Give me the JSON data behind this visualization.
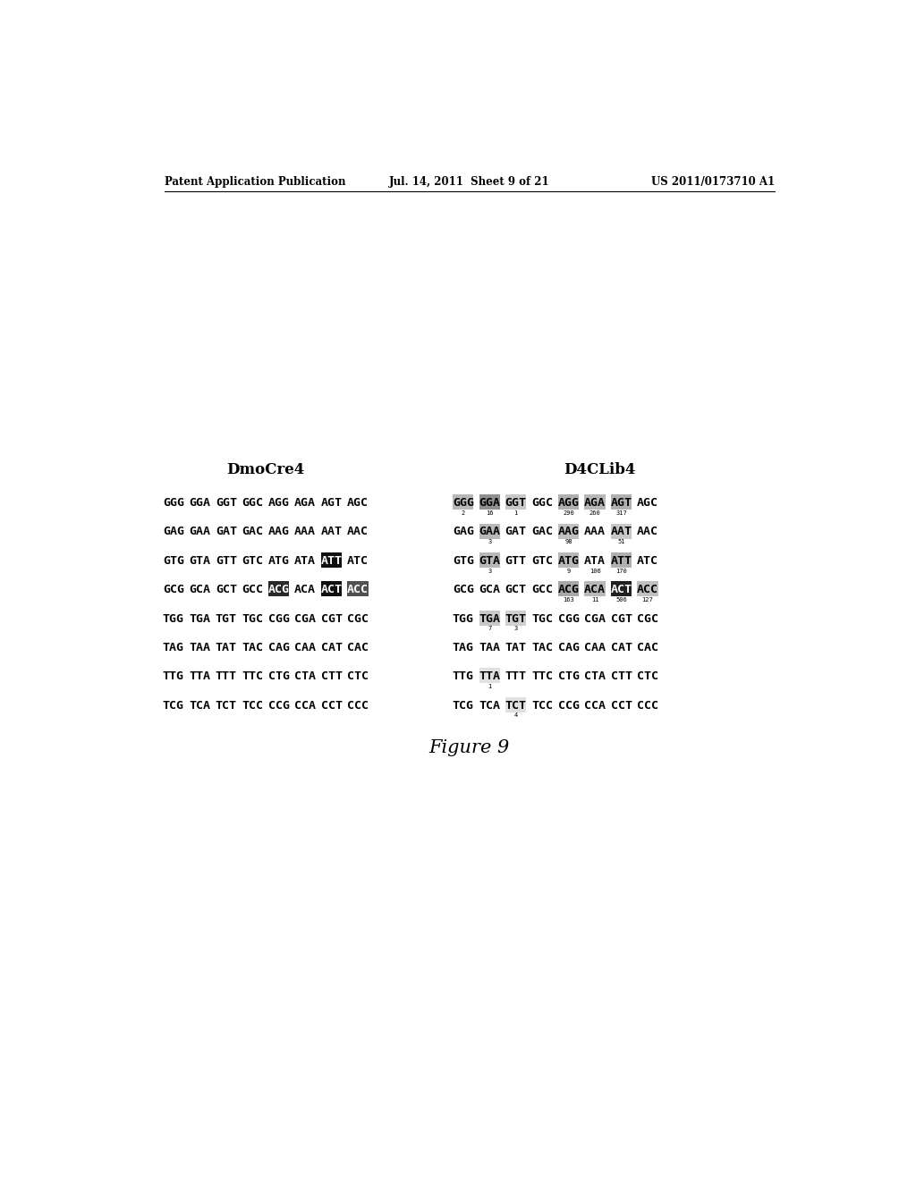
{
  "header_left": "Patent Application Publication",
  "header_mid": "Jul. 14, 2011  Sheet 9 of 21",
  "header_right": "US 2011/0173710 A1",
  "figure_caption": "Figure 9",
  "title_left": "DmoCre4",
  "title_right": "D4CLib4",
  "left_rows": [
    [
      "GGG",
      "GGA",
      "GGT",
      "GGC",
      "AGG",
      "AGA",
      "AGT",
      "AGC"
    ],
    [
      "GAG",
      "GAA",
      "GAT",
      "GAC",
      "AAG",
      "AAA",
      "AAT",
      "AAC"
    ],
    [
      "GTG",
      "GTA",
      "GTT",
      "GTC",
      "ATG",
      "ATA",
      "ATT",
      "ATC"
    ],
    [
      "GCG",
      "GCA",
      "GCT",
      "GCC",
      "ACG",
      "ACA",
      "ACT",
      "ACC"
    ],
    [
      "TGG",
      "TGA",
      "TGT",
      "TGC",
      "CGG",
      "CGA",
      "CGT",
      "CGC"
    ],
    [
      "TAG",
      "TAA",
      "TAT",
      "TAC",
      "CAG",
      "CAA",
      "CAT",
      "CAC"
    ],
    [
      "TTG",
      "TTA",
      "TTT",
      "TTC",
      "CTG",
      "CTA",
      "CTT",
      "CTC"
    ],
    [
      "TCG",
      "TCA",
      "TCT",
      "TCC",
      "CCG",
      "CCA",
      "CCT",
      "CCC"
    ]
  ],
  "right_rows": [
    [
      "GGG",
      "GGA",
      "GGT",
      "GGC",
      "AGG",
      "AGA",
      "AGT",
      "AGC"
    ],
    [
      "GAG",
      "GAA",
      "GAT",
      "GAC",
      "AAG",
      "AAA",
      "AAT",
      "AAC"
    ],
    [
      "GTG",
      "GTA",
      "GTT",
      "GTC",
      "ATG",
      "ATA",
      "ATT",
      "ATC"
    ],
    [
      "GCG",
      "GCA",
      "GCT",
      "GCC",
      "ACG",
      "ACA",
      "ACT",
      "ACC"
    ],
    [
      "TGG",
      "TGA",
      "TGT",
      "TGC",
      "CGG",
      "CGA",
      "CGT",
      "CGC"
    ],
    [
      "TAG",
      "TAA",
      "TAT",
      "TAC",
      "CAG",
      "CAA",
      "CAT",
      "CAC"
    ],
    [
      "TTG",
      "TTA",
      "TTT",
      "TTC",
      "CTG",
      "CTA",
      "CTT",
      "CTC"
    ],
    [
      "TCG",
      "TCA",
      "TCT",
      "TCC",
      "CCG",
      "CCA",
      "CCT",
      "CCC"
    ]
  ],
  "left_highlights": {
    "2": [
      {
        "idx": 6,
        "bg": "#101010",
        "fg": "white"
      }
    ],
    "3": [
      {
        "idx": 4,
        "bg": "#282828",
        "fg": "white"
      },
      {
        "idx": 6,
        "bg": "#101010",
        "fg": "white"
      },
      {
        "idx": 7,
        "bg": "#505050",
        "fg": "white"
      }
    ]
  },
  "right_highlights": {
    "0": [
      {
        "idx": 0,
        "bg": "#b8b8b8",
        "fg": "black"
      },
      {
        "idx": 1,
        "bg": "#909090",
        "fg": "black"
      },
      {
        "idx": 2,
        "bg": "#c8c8c8",
        "fg": "black"
      },
      {
        "idx": 4,
        "bg": "#b0b0b0",
        "fg": "black"
      },
      {
        "idx": 5,
        "bg": "#b8b8b8",
        "fg": "black"
      },
      {
        "idx": 6,
        "bg": "#b0b0b0",
        "fg": "black"
      }
    ],
    "1": [
      {
        "idx": 1,
        "bg": "#b8b8b8",
        "fg": "black"
      },
      {
        "idx": 4,
        "bg": "#c0c0c0",
        "fg": "black"
      },
      {
        "idx": 6,
        "bg": "#c8c8c8",
        "fg": "black"
      }
    ],
    "2": [
      {
        "idx": 1,
        "bg": "#b8b8b8",
        "fg": "black"
      },
      {
        "idx": 4,
        "bg": "#b8b8b8",
        "fg": "black"
      },
      {
        "idx": 6,
        "bg": "#b0b0b0",
        "fg": "black"
      }
    ],
    "3": [
      {
        "idx": 4,
        "bg": "#a8a8a8",
        "fg": "black"
      },
      {
        "idx": 5,
        "bg": "#b8b8b8",
        "fg": "black"
      },
      {
        "idx": 6,
        "bg": "#202020",
        "fg": "white"
      },
      {
        "idx": 7,
        "bg": "#c0c0c0",
        "fg": "black"
      }
    ],
    "4": [
      {
        "idx": 1,
        "bg": "#c8c8c8",
        "fg": "black"
      },
      {
        "idx": 2,
        "bg": "#d0d0d0",
        "fg": "black"
      }
    ],
    "6": [
      {
        "idx": 1,
        "bg": "#e0e0e0",
        "fg": "black"
      }
    ],
    "7": [
      {
        "idx": 2,
        "bg": "#e0e0e0",
        "fg": "black"
      }
    ]
  },
  "right_subscripts": [
    [
      0,
      0,
      "2"
    ],
    [
      0,
      1,
      "16"
    ],
    [
      0,
      2,
      "1"
    ],
    [
      0,
      4,
      "290"
    ],
    [
      0,
      5,
      "260"
    ],
    [
      0,
      6,
      "317"
    ],
    [
      1,
      1,
      "3"
    ],
    [
      1,
      4,
      "98"
    ],
    [
      1,
      6,
      "51"
    ],
    [
      2,
      1,
      "3"
    ],
    [
      2,
      4,
      "9"
    ],
    [
      2,
      5,
      "106"
    ],
    [
      2,
      6,
      "170"
    ],
    [
      3,
      4,
      "163"
    ],
    [
      3,
      5,
      "11"
    ],
    [
      3,
      6,
      "506"
    ],
    [
      3,
      7,
      "127"
    ],
    [
      4,
      1,
      "7"
    ],
    [
      4,
      2,
      "3"
    ],
    [
      6,
      1,
      "1"
    ],
    [
      7,
      2,
      "4"
    ]
  ],
  "background_color": "#ffffff"
}
